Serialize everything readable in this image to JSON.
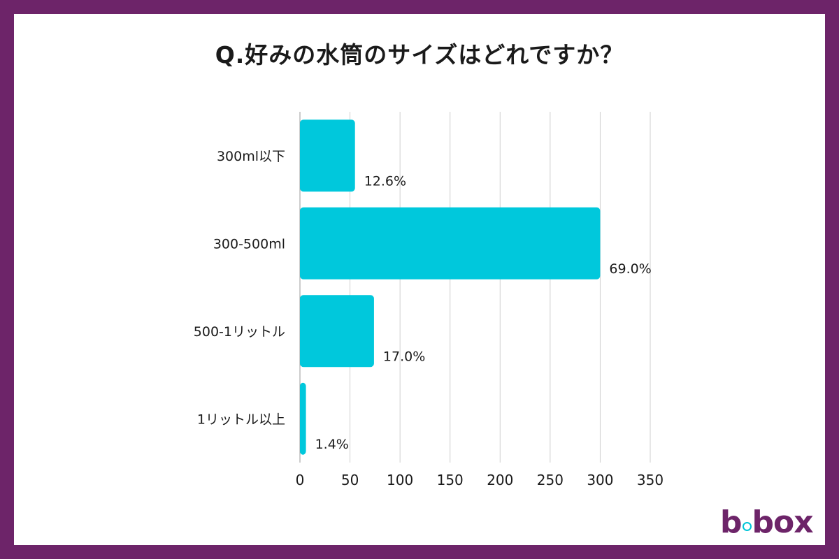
{
  "title": "Q.好みの水筒のサイズはどれですか？",
  "brand": {
    "logo_text_left": "b",
    "logo_text_right": "box",
    "frame_color": "#6d2469",
    "accent_color": "#00c5d8"
  },
  "chart_data": {
    "type": "bar",
    "orientation": "horizontal",
    "categories": [
      "300ml以下",
      "300-500ml",
      "500-1リットル",
      "1リットル以上"
    ],
    "values": [
      55,
      300,
      74,
      6
    ],
    "data_labels": [
      "12.6%",
      "69.0%",
      "17.0%",
      "1.4%"
    ],
    "xlim": [
      0,
      350
    ],
    "xticks": [
      0,
      50,
      100,
      150,
      200,
      250,
      300,
      350
    ],
    "grid": "vertical",
    "bar_color": "#00c8dc",
    "legend": "none"
  }
}
